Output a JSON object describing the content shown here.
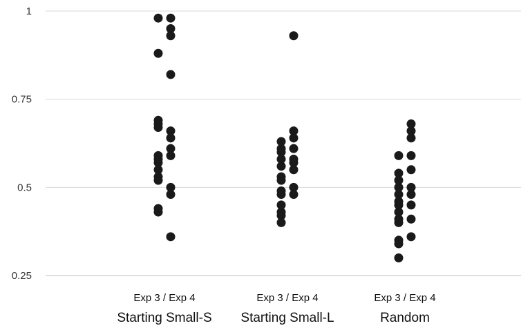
{
  "chart_data": {
    "type": "scatter",
    "ylim": [
      0.25,
      1
    ],
    "yticks": [
      "0.25",
      "0.5",
      "0.75",
      "1"
    ],
    "grid": true,
    "marker_color": "#1a1a1a",
    "categories": [
      {
        "name": "Starting Small-S",
        "sublabel": "Exp 3 / Exp 4",
        "exp3": [
          0.98,
          0.88,
          0.69,
          0.68,
          0.67,
          0.59,
          0.58,
          0.57,
          0.55,
          0.53,
          0.52,
          0.44,
          0.43
        ],
        "exp4": [
          0.98,
          0.95,
          0.93,
          0.82,
          0.66,
          0.64,
          0.61,
          0.59,
          0.5,
          0.48,
          0.36
        ]
      },
      {
        "name": "Starting Small-L",
        "sublabel": "Exp 3 / Exp 4",
        "exp3": [
          0.63,
          0.61,
          0.6,
          0.58,
          0.56,
          0.53,
          0.52,
          0.49,
          0.48,
          0.45,
          0.43,
          0.42,
          0.4
        ],
        "exp4": [
          0.93,
          0.66,
          0.64,
          0.61,
          0.58,
          0.57,
          0.55,
          0.5,
          0.48
        ]
      },
      {
        "name": "Random",
        "sublabel": "Exp 3 / Exp 4",
        "exp3": [
          0.59,
          0.54,
          0.52,
          0.5,
          0.48,
          0.46,
          0.45,
          0.43,
          0.41,
          0.4,
          0.35,
          0.34,
          0.3
        ],
        "exp4": [
          0.68,
          0.66,
          0.64,
          0.59,
          0.55,
          0.5,
          0.48,
          0.45,
          0.41,
          0.36
        ]
      }
    ]
  }
}
